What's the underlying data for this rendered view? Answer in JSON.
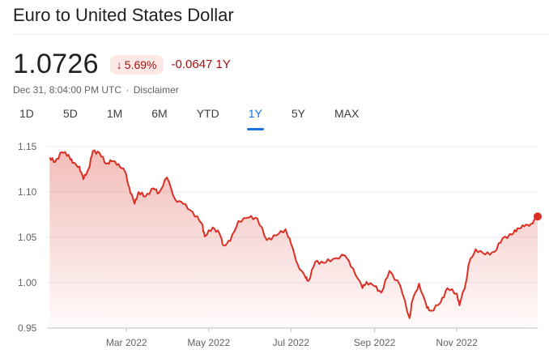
{
  "header": {
    "title": "Euro to United States Dollar"
  },
  "quote": {
    "price": "1.0726",
    "change_arrow": "↓",
    "change_percent": "5.69%",
    "change_value": "-0.0647 1Y",
    "timestamp": "Dec 31, 8:04:00 PM UTC",
    "separator": "·",
    "disclaimer": "Disclaimer"
  },
  "tabs": [
    {
      "label": "1D"
    },
    {
      "label": "5D"
    },
    {
      "label": "1M"
    },
    {
      "label": "6M"
    },
    {
      "label": "YTD"
    },
    {
      "label": "1Y",
      "active": true
    },
    {
      "label": "5Y"
    },
    {
      "label": "MAX"
    }
  ],
  "colors": {
    "line": "#d93025",
    "negative_bg": "#fce8e6",
    "negative_text": "#a50e0e",
    "active_tab": "#1a73e8",
    "gridline": "#e8eaed",
    "axis_text": "#5f6368"
  },
  "chart_data": {
    "type": "area",
    "title": "",
    "xlabel": "",
    "ylabel": "",
    "ylim": [
      0.95,
      1.15
    ],
    "y_ticks": [
      "1.15",
      "1.10",
      "1.05",
      "1.00",
      "0.95"
    ],
    "x_ticks": [
      "Mar 2022",
      "May 2022",
      "Jul 2022",
      "Sep 2022",
      "Nov 2022"
    ],
    "grid": true,
    "series": [
      {
        "x": [
          "2022-01-03",
          "2022-01-07",
          "2022-01-12",
          "2022-01-17",
          "2022-01-20",
          "2022-01-25",
          "2022-01-28",
          "2022-02-01",
          "2022-02-04",
          "2022-02-09",
          "2022-02-14",
          "2022-02-18",
          "2022-02-23",
          "2022-02-28",
          "2022-03-03",
          "2022-03-07",
          "2022-03-10",
          "2022-03-15",
          "2022-03-21",
          "2022-03-25",
          "2022-03-31",
          "2022-04-06",
          "2022-04-12",
          "2022-04-19",
          "2022-04-26",
          "2022-04-28",
          "2022-05-04",
          "2022-05-09",
          "2022-05-12",
          "2022-05-17",
          "2022-05-23",
          "2022-05-31",
          "2022-06-06",
          "2022-06-13",
          "2022-06-20",
          "2022-06-27",
          "2022-07-01",
          "2022-07-06",
          "2022-07-12",
          "2022-07-14",
          "2022-07-19",
          "2022-07-25",
          "2022-08-01",
          "2022-08-10",
          "2022-08-16",
          "2022-08-23",
          "2022-08-26",
          "2022-09-01",
          "2022-09-06",
          "2022-09-12",
          "2022-09-20",
          "2022-09-27",
          "2022-09-29",
          "2022-10-04",
          "2022-10-10",
          "2022-10-13",
          "2022-10-20",
          "2022-10-25",
          "2022-11-01",
          "2022-11-03",
          "2022-11-08",
          "2022-11-10",
          "2022-11-15",
          "2022-11-22",
          "2022-11-29",
          "2022-12-05",
          "2022-12-12",
          "2022-12-16",
          "2022-12-21",
          "2022-12-26",
          "2022-12-31"
        ],
        "y": [
          1.138,
          1.133,
          1.144,
          1.141,
          1.132,
          1.128,
          1.114,
          1.126,
          1.145,
          1.143,
          1.131,
          1.134,
          1.131,
          1.122,
          1.105,
          1.087,
          1.1,
          1.095,
          1.104,
          1.099,
          1.116,
          1.092,
          1.087,
          1.078,
          1.065,
          1.051,
          1.061,
          1.054,
          1.041,
          1.046,
          1.068,
          1.072,
          1.071,
          1.047,
          1.052,
          1.059,
          1.043,
          1.02,
          1.005,
          1.002,
          1.023,
          1.022,
          1.026,
          1.03,
          1.016,
          0.994,
          1.001,
          0.996,
          0.989,
          1.013,
          0.997,
          0.961,
          0.98,
          0.999,
          0.972,
          0.969,
          0.978,
          0.994,
          0.988,
          0.975,
          1.002,
          1.021,
          1.037,
          1.031,
          1.034,
          1.049,
          1.053,
          1.06,
          1.062,
          1.065,
          1.073
        ]
      }
    ]
  }
}
